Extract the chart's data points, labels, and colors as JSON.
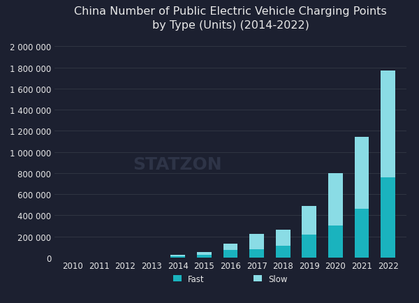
{
  "years": [
    2010,
    2011,
    2012,
    2013,
    2014,
    2015,
    2016,
    2017,
    2018,
    2019,
    2020,
    2021,
    2022
  ],
  "fast": [
    0,
    0,
    0,
    0,
    13000,
    27000,
    68000,
    80000,
    110000,
    215000,
    305000,
    460000,
    760000
  ],
  "slow": [
    0,
    0,
    0,
    0,
    12000,
    22000,
    65000,
    140000,
    150000,
    275000,
    495000,
    680000,
    1010000
  ],
  "fast_color": "#1ab3be",
  "slow_color": "#8adce5",
  "background_color": "#1c2030",
  "text_color": "#e8e8e8",
  "grid_color": "#333845",
  "title_line1": "China Number of Public Electric Vehicle Charging Points",
  "title_line2": "by Type (Units) (2014-2022)",
  "ylim": [
    0,
    2100000
  ],
  "yticks": [
    0,
    200000,
    400000,
    600000,
    800000,
    1000000,
    1200000,
    1400000,
    1600000,
    1800000,
    2000000
  ],
  "watermark": "STATZON",
  "legend_fast": "Fast",
  "legend_slow": "Slow",
  "title_fontsize": 11.5,
  "tick_fontsize": 8.5,
  "legend_fontsize": 8.5,
  "bar_width": 0.55
}
